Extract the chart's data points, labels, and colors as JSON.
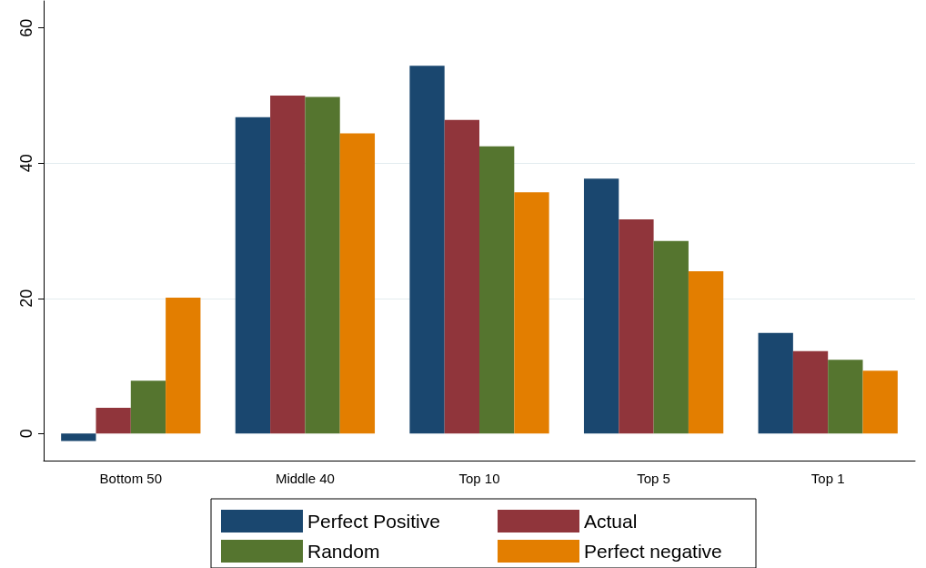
{
  "chart_data": {
    "type": "bar",
    "categories": [
      "Bottom 50",
      "Middle 40",
      "Top 10",
      "Top 5",
      "Top 1"
    ],
    "series": [
      {
        "name": "Perfect Positive",
        "color": "#1a476f",
        "values": [
          -1.1,
          46.8,
          54.4,
          37.7,
          14.9
        ]
      },
      {
        "name": "Actual",
        "color": "#90353b",
        "values": [
          3.8,
          50.0,
          46.4,
          31.7,
          12.2
        ]
      },
      {
        "name": "Random",
        "color": "#55752f",
        "values": [
          7.8,
          49.8,
          42.5,
          28.5,
          10.9
        ]
      },
      {
        "name": "Perfect negative",
        "color": "#e37e00",
        "values": [
          20.1,
          44.4,
          35.7,
          24.0,
          9.3
        ]
      }
    ],
    "ylim": [
      -4,
      64
    ],
    "yticks": [
      0,
      20,
      40,
      60
    ],
    "grid": "y",
    "legend": "bottom"
  }
}
